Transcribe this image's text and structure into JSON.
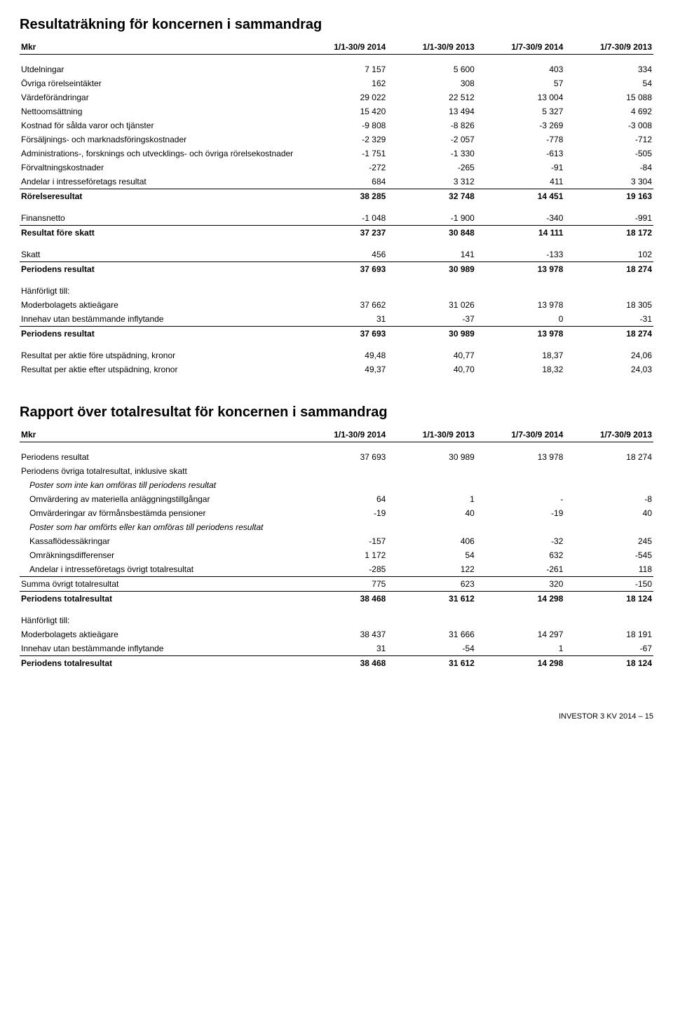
{
  "page_footer": "INVESTOR 3 KV 2014 – 15",
  "income": {
    "title": "Resultaträkning för koncernen i sammandrag",
    "unit_header": "Mkr",
    "cols": [
      "1/1-30/9 2014",
      "1/1-30/9 2013",
      "1/7-30/9 2014",
      "1/7-30/9 2013"
    ],
    "rows": [
      {
        "label": "Utdelningar",
        "v": [
          "7 157",
          "5 600",
          "403",
          "334"
        ],
        "pad_top": true
      },
      {
        "label": "Övriga rörelseintäkter",
        "v": [
          "162",
          "308",
          "57",
          "54"
        ]
      },
      {
        "label": "Värdeförändringar",
        "v": [
          "29 022",
          "22 512",
          "13 004",
          "15 088"
        ]
      },
      {
        "label": "Nettoomsättning",
        "v": [
          "15 420",
          "13 494",
          "5 327",
          "4 692"
        ]
      },
      {
        "label": "Kostnad för sålda varor och tjänster",
        "v": [
          "-9 808",
          "-8 826",
          "-3 269",
          "-3 008"
        ]
      },
      {
        "label": "Försäljnings- och marknadsföringskostnader",
        "v": [
          "-2 329",
          "-2 057",
          "-778",
          "-712"
        ]
      },
      {
        "label": "Administrations-, forsknings och utvecklings- och övriga rörelsekostnader",
        "v": [
          "-1 751",
          "-1 330",
          "-613",
          "-505"
        ]
      },
      {
        "label": "Förvaltningskostnader",
        "v": [
          "-272",
          "-265",
          "-91",
          "-84"
        ]
      },
      {
        "label": "Andelar i intresseföretags resultat",
        "v": [
          "684",
          "3 312",
          "411",
          "3 304"
        ]
      },
      {
        "label": "Rörelseresultat",
        "v": [
          "38 285",
          "32 748",
          "14 451",
          "19 163"
        ],
        "bold": true,
        "topline": true
      },
      {
        "label": "Finansnetto",
        "v": [
          "-1 048",
          "-1 900",
          "-340",
          "-991"
        ],
        "pad_top": true
      },
      {
        "label": "Resultat före skatt",
        "v": [
          "37 237",
          "30 848",
          "14 111",
          "18 172"
        ],
        "bold": true,
        "topline": true
      },
      {
        "label": "Skatt",
        "v": [
          "456",
          "141",
          "-133",
          "102"
        ],
        "pad_top": true
      },
      {
        "label": "Periodens resultat",
        "v": [
          "37 693",
          "30 989",
          "13 978",
          "18 274"
        ],
        "bold": true,
        "topline": true
      },
      {
        "label": "Hänförligt till:",
        "v": [
          "",
          "",
          "",
          ""
        ],
        "pad_top": true
      },
      {
        "label": "Moderbolagets aktieägare",
        "v": [
          "37 662",
          "31 026",
          "13 978",
          "18 305"
        ]
      },
      {
        "label": "Innehav utan bestämmande inflytande",
        "v": [
          "31",
          "-37",
          "0",
          "-31"
        ]
      },
      {
        "label": "Periodens resultat",
        "v": [
          "37 693",
          "30 989",
          "13 978",
          "18 274"
        ],
        "bold": true,
        "topline": true
      },
      {
        "label": "Resultat per aktie före utspädning, kronor",
        "v": [
          "49,48",
          "40,77",
          "18,37",
          "24,06"
        ],
        "pad_top": true
      },
      {
        "label": "Resultat per aktie efter utspädning, kronor",
        "v": [
          "49,37",
          "40,70",
          "18,32",
          "24,03"
        ]
      }
    ]
  },
  "compr": {
    "title": "Rapport över totalresultat för koncernen i sammandrag",
    "unit_header": "Mkr",
    "cols": [
      "1/1-30/9 2014",
      "1/1-30/9 2013",
      "1/7-30/9 2014",
      "1/7-30/9 2013"
    ],
    "rows": [
      {
        "label": "Periodens resultat",
        "v": [
          "37 693",
          "30 989",
          "13 978",
          "18 274"
        ],
        "pad_top": true
      },
      {
        "label": "Periodens övriga totalresultat, inklusive skatt",
        "v": [
          "",
          "",
          "",
          ""
        ]
      },
      {
        "label": "Poster som inte kan omföras till periodens resultat",
        "v": [
          "",
          "",
          "",
          ""
        ],
        "italic": true,
        "indent": true
      },
      {
        "label": "Omvärdering av materiella anläggningstillgångar",
        "v": [
          "64",
          "1",
          "-",
          "-8"
        ],
        "indent": true
      },
      {
        "label": "Omvärderingar av förmånsbestämda pensioner",
        "v": [
          "-19",
          "40",
          "-19",
          "40"
        ],
        "indent": true
      },
      {
        "label": "Poster som har omförts eller kan omföras till periodens resultat",
        "v": [
          "",
          "",
          "",
          ""
        ],
        "italic": true,
        "indent": true
      },
      {
        "label": "Kassaflödessäkringar",
        "v": [
          "-157",
          "406",
          "-32",
          "245"
        ],
        "indent": true
      },
      {
        "label": "Omräkningsdifferenser",
        "v": [
          "1 172",
          "54",
          "632",
          "-545"
        ],
        "indent": true
      },
      {
        "label": "Andelar i intresseföretags övrigt totalresultat",
        "v": [
          "-285",
          "122",
          "-261",
          "118"
        ],
        "indent": true
      },
      {
        "label": "Summa övrigt totalresultat",
        "v": [
          "775",
          "623",
          "320",
          "-150"
        ],
        "topline": true
      },
      {
        "label": "Periodens totalresultat",
        "v": [
          "38 468",
          "31 612",
          "14 298",
          "18 124"
        ],
        "bold": true,
        "topline": true
      },
      {
        "label": "Hänförligt till:",
        "v": [
          "",
          "",
          "",
          ""
        ],
        "pad_top": true
      },
      {
        "label": "Moderbolagets aktieägare",
        "v": [
          "38 437",
          "31 666",
          "14 297",
          "18 191"
        ]
      },
      {
        "label": "Innehav utan bestämmande inflytande",
        "v": [
          "31",
          "-54",
          "1",
          "-67"
        ]
      },
      {
        "label": "Periodens totalresultat",
        "v": [
          "38 468",
          "31 612",
          "14 298",
          "18 124"
        ],
        "bold": true,
        "topline": true
      }
    ]
  }
}
